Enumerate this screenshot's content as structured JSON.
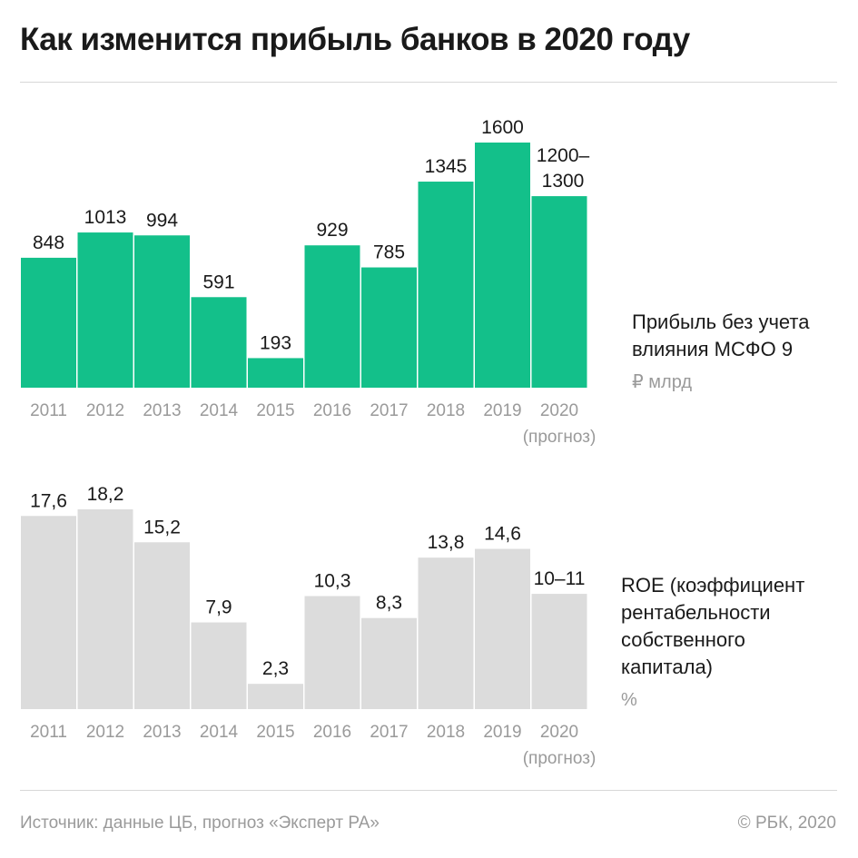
{
  "title": "Как изменится прибыль банков в 2020 году",
  "source": "Источник: данные ЦБ, прогноз «Эксперт РА»",
  "copyright": "© РБК, 2020",
  "colors": {
    "profit_bar": "#13c08a",
    "roe_bar": "#dcdcdc"
  },
  "chart_data": [
    {
      "type": "bar",
      "categories": [
        "2011",
        "2012",
        "2013",
        "2014",
        "2015",
        "2016",
        "2017",
        "2018",
        "2019",
        "2020"
      ],
      "category_notes": {
        "2020": "(прогноз)"
      },
      "values": [
        848,
        1013,
        994,
        591,
        193,
        929,
        785,
        1345,
        1600,
        1250
      ],
      "value_labels": [
        "848",
        "1013",
        "994",
        "591",
        "193",
        "929",
        "785",
        "1345",
        "1600",
        "1200–\n1300"
      ],
      "label": "Прибыль без учета влияния МСФО 9",
      "unit": "₽ млрд",
      "ylim": [
        0,
        1600
      ],
      "grid": false
    },
    {
      "type": "bar",
      "categories": [
        "2011",
        "2012",
        "2013",
        "2014",
        "2015",
        "2016",
        "2017",
        "2018",
        "2019",
        "2020"
      ],
      "category_notes": {
        "2020": "(прогноз)"
      },
      "values": [
        17.6,
        18.2,
        15.2,
        7.9,
        2.3,
        10.3,
        8.3,
        13.8,
        14.6,
        10.5
      ],
      "value_labels": [
        "17,6",
        "18,2",
        "15,2",
        "7,9",
        "2,3",
        "10,3",
        "8,3",
        "13,8",
        "14,6",
        "10–11"
      ],
      "label": "ROE (коэффициент рентабельности собственного капитала)",
      "unit": "%",
      "ylim": [
        0,
        18.2
      ],
      "grid": false
    }
  ]
}
